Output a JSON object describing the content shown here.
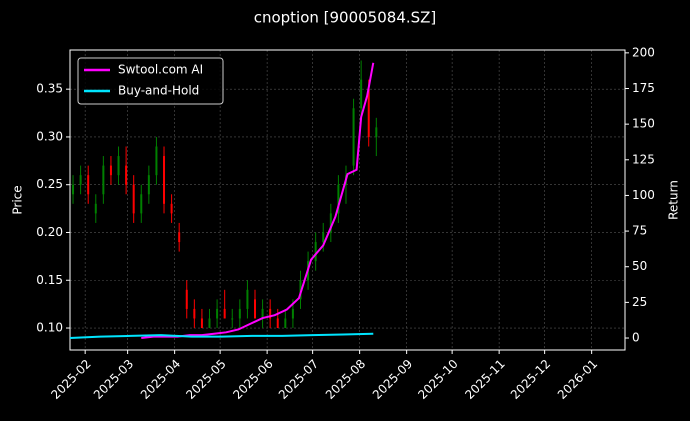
{
  "chart_data": {
    "type": "candlestick",
    "title": "cnoption [90005084.SZ]",
    "ylabel": "Price",
    "y2label": "Return",
    "up_color": "#008000",
    "down_color": "#ff0000",
    "grid": true,
    "legend": "upper-left",
    "xlim": [
      -10,
      356
    ],
    "xticks": [
      {
        "value": 0,
        "label": "2025-02"
      },
      {
        "value": 28,
        "label": "2025-03"
      },
      {
        "value": 59,
        "label": "2025-04"
      },
      {
        "value": 89,
        "label": "2025-05"
      },
      {
        "value": 120,
        "label": "2025-06"
      },
      {
        "value": 150,
        "label": "2025-07"
      },
      {
        "value": 181,
        "label": "2025-08"
      },
      {
        "value": 212,
        "label": "2025-09"
      },
      {
        "value": 242,
        "label": "2025-10"
      },
      {
        "value": 273,
        "label": "2025-11"
      },
      {
        "value": 303,
        "label": "2025-12"
      },
      {
        "value": 334,
        "label": "2026-01"
      }
    ],
    "ylim": [
      0.077,
      0.391
    ],
    "yticks": [
      {
        "value": 0.1,
        "label": "0.10"
      },
      0.15,
      {
        "value": 0.2,
        "label": "0.20"
      },
      0.25,
      {
        "value": 0.3,
        "label": "0.30"
      },
      0.35
    ],
    "y2lim": [
      -8.4,
      202
    ],
    "y2ticks": [
      0,
      25,
      50,
      75,
      100,
      125,
      150,
      175,
      200
    ],
    "candles": {
      "x": [
        -8,
        -3,
        2,
        7,
        12,
        17,
        22,
        27,
        32,
        37,
        42,
        47,
        52,
        57,
        62,
        67,
        72,
        77,
        82,
        87,
        92,
        97,
        102,
        107,
        112,
        117,
        122,
        127,
        132,
        137,
        142,
        147,
        152,
        157,
        162,
        167,
        172,
        177,
        182,
        187,
        192
      ],
      "open": [
        0.24,
        0.25,
        0.26,
        0.22,
        0.24,
        0.27,
        0.26,
        0.27,
        0.25,
        0.22,
        0.24,
        0.26,
        0.28,
        0.23,
        0.2,
        0.14,
        0.12,
        0.11,
        0.1,
        0.11,
        0.12,
        0.11,
        0.11,
        0.12,
        0.13,
        0.11,
        0.12,
        0.11,
        0.1,
        0.11,
        0.13,
        0.15,
        0.17,
        0.19,
        0.2,
        0.22,
        0.25,
        0.27,
        0.33,
        0.35,
        0.3
      ],
      "high": [
        0.26,
        0.27,
        0.27,
        0.24,
        0.28,
        0.28,
        0.29,
        0.29,
        0.26,
        0.25,
        0.27,
        0.3,
        0.29,
        0.24,
        0.21,
        0.15,
        0.13,
        0.12,
        0.12,
        0.13,
        0.14,
        0.12,
        0.13,
        0.15,
        0.14,
        0.13,
        0.13,
        0.12,
        0.12,
        0.13,
        0.16,
        0.18,
        0.2,
        0.21,
        0.23,
        0.26,
        0.27,
        0.34,
        0.38,
        0.36,
        0.32
      ],
      "low": [
        0.23,
        0.24,
        0.23,
        0.21,
        0.23,
        0.25,
        0.25,
        0.24,
        0.21,
        0.21,
        0.23,
        0.25,
        0.22,
        0.21,
        0.18,
        0.11,
        0.1,
        0.1,
        0.1,
        0.1,
        0.11,
        0.1,
        0.1,
        0.11,
        0.11,
        0.1,
        0.1,
        0.1,
        0.1,
        0.1,
        0.12,
        0.14,
        0.16,
        0.18,
        0.19,
        0.21,
        0.23,
        0.26,
        0.32,
        0.29,
        0.28
      ],
      "close": [
        0.25,
        0.26,
        0.24,
        0.23,
        0.27,
        0.26,
        0.28,
        0.25,
        0.22,
        0.24,
        0.26,
        0.29,
        0.23,
        0.22,
        0.19,
        0.12,
        0.11,
        0.1,
        0.11,
        0.12,
        0.11,
        0.11,
        0.12,
        0.14,
        0.11,
        0.12,
        0.11,
        0.1,
        0.11,
        0.12,
        0.15,
        0.17,
        0.19,
        0.2,
        0.22,
        0.25,
        0.26,
        0.33,
        0.36,
        0.3,
        0.31
      ]
    },
    "series": [
      {
        "name": "Swtool.com AI",
        "color": "#ff00ff",
        "axis": "y2",
        "x": [
          37,
          45,
          53,
          61,
          69,
          77,
          85,
          93,
          101,
          109,
          117,
          125,
          133,
          141,
          149,
          157,
          165,
          173,
          179,
          182,
          186,
          190
        ],
        "values": [
          0,
          1,
          1,
          1,
          2,
          2,
          3,
          4,
          6,
          10,
          14,
          16,
          20,
          28,
          55,
          65,
          85,
          115,
          118,
          155,
          170,
          193
        ]
      },
      {
        "name": "Buy-and-Hold",
        "color": "#00e5ff",
        "axis": "y2",
        "x": [
          -10,
          10,
          30,
          50,
          70,
          90,
          110,
          130,
          150,
          170,
          190
        ],
        "values": [
          0,
          1,
          1.5,
          2,
          1,
          1,
          1.5,
          1.5,
          2,
          2.5,
          3
        ]
      }
    ]
  }
}
